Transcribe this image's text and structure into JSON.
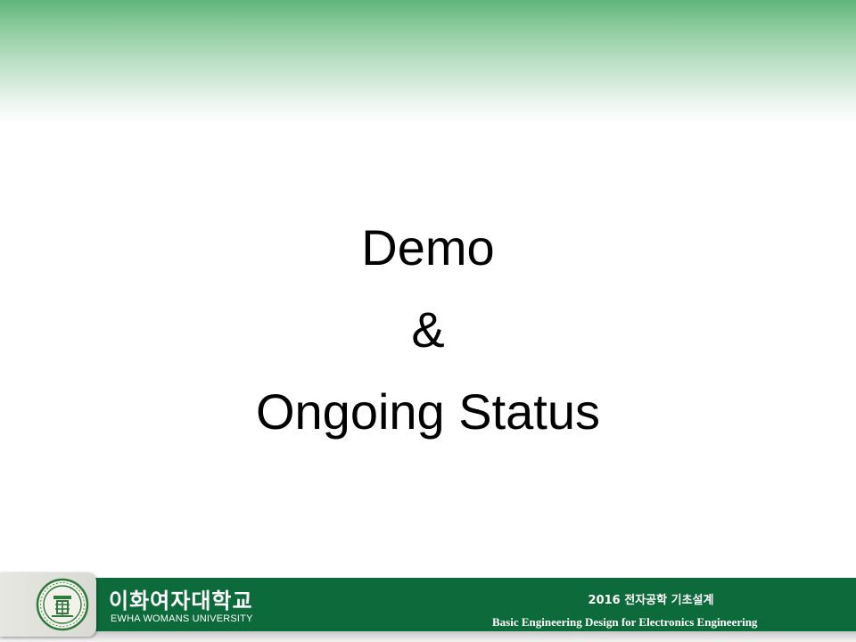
{
  "slide": {
    "title_lines": [
      "Demo",
      "&",
      "Ongoing Status"
    ]
  },
  "footer": {
    "university_korean": "이화여자대학교",
    "university_english": "EWHA WOMANS UNIVERSITY",
    "course_korean": "2016 전자공학 기초설계",
    "course_english": "Basic Engineering Design for Electronics Engineering"
  },
  "colors": {
    "header_green": "#5fb57a",
    "footer_green": "#0d6a3a",
    "seal_green": "#2f7a3c"
  },
  "icons": {
    "seal": "ewha-seal-icon"
  }
}
